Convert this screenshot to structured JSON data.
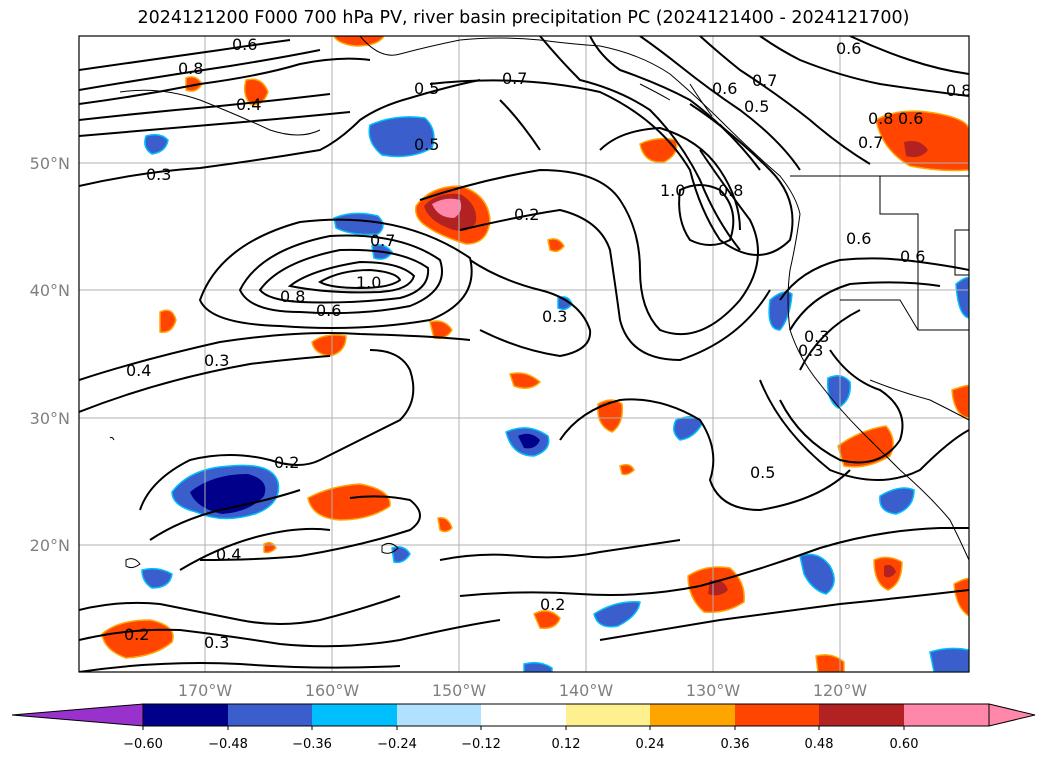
{
  "title": "2024121200 F000 700 hPa PV, river basin precipitation PC (2024121400 - 2024121700)",
  "map": {
    "latitude_labels": [
      "50°N",
      "40°N",
      "30°N",
      "20°N"
    ],
    "longitude_labels": [
      "170°W",
      "160°W",
      "150°W",
      "140°W",
      "130°W",
      "120°W"
    ],
    "contour_labels": [
      "0.8",
      "0.6",
      "0.4",
      "0.5",
      "0.5",
      "0.7",
      "0.6",
      "0.5",
      "0.7",
      "0.6",
      "0.8",
      "0.6",
      "0.8",
      "0.7",
      "0.3",
      "1.0",
      "0.8",
      "0.2",
      "0.7",
      "1.0",
      "0.8",
      "0.6",
      "0.6",
      "0.6",
      "0.3",
      "0.3",
      "0.4",
      "0.3",
      "0.3",
      "0.2",
      "0.5",
      "0.4",
      "0.2",
      "0.2",
      "0.3"
    ],
    "colors": {
      "neg_060": "#9932cc",
      "neg_048": "#00008b",
      "neg_036": "#3a5fcd",
      "neg_024": "#00bfff",
      "neg_012": "#b0e2ff",
      "pos_012": "#fff08f",
      "pos_024": "#ffa500",
      "pos_036": "#ff4500",
      "pos_048": "#b22222",
      "pos_060": "#ff88aa"
    }
  },
  "colorbar": {
    "ticks": [
      "−0.60",
      "−0.48",
      "−0.36",
      "−0.24",
      "−0.12",
      "0.12",
      "0.24",
      "0.36",
      "0.48",
      "0.60"
    ],
    "colors": [
      "#9932cc",
      "#00008b",
      "#3a5fcd",
      "#00bfff",
      "#b0e2ff",
      "#ffffff",
      "#fff08f",
      "#ffa500",
      "#ff4500",
      "#b22222",
      "#ff88aa"
    ]
  }
}
